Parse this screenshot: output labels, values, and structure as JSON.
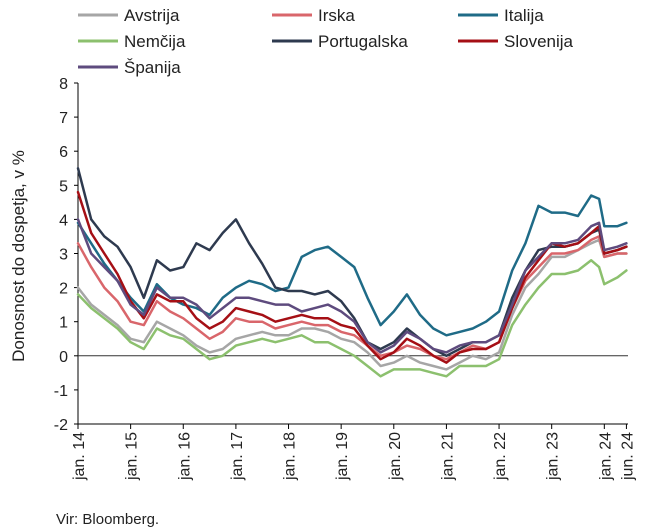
{
  "chart_data": {
    "type": "line",
    "ylabel": "Donosnost do dospetja, v %",
    "source": "Vir: Bloomberg.",
    "ylim": [
      -2,
      8
    ],
    "yticks": [
      -2,
      -1,
      0,
      1,
      2,
      3,
      4,
      5,
      6,
      7,
      8
    ],
    "xlim": [
      2014.0,
      2024.45
    ],
    "xticks": [
      {
        "label": "jan. 14",
        "x": 2014.0
      },
      {
        "label": "jan. 15",
        "x": 2015.0
      },
      {
        "label": "jan. 16",
        "x": 2016.0
      },
      {
        "label": "jan. 17",
        "x": 2017.0
      },
      {
        "label": "jan. 18",
        "x": 2018.0
      },
      {
        "label": "jan. 19",
        "x": 2019.0
      },
      {
        "label": "jan. 20",
        "x": 2020.0
      },
      {
        "label": "jan. 21",
        "x": 2021.0
      },
      {
        "label": "jan. 22",
        "x": 2022.0
      },
      {
        "label": "jan. 23",
        "x": 2023.0
      },
      {
        "label": "jan. 24",
        "x": 2024.0
      },
      {
        "label": "jun. 24",
        "x": 2024.42
      }
    ],
    "grid": false,
    "legend_position": "top",
    "series": [
      {
        "name": "Avstrija",
        "color": "#a6a6a6",
        "x": [
          2014.0,
          2014.25,
          2014.5,
          2014.75,
          2015.0,
          2015.25,
          2015.5,
          2015.75,
          2016.0,
          2016.25,
          2016.5,
          2016.75,
          2017.0,
          2017.25,
          2017.5,
          2017.75,
          2018.0,
          2018.25,
          2018.5,
          2018.75,
          2019.0,
          2019.25,
          2019.5,
          2019.75,
          2020.0,
          2020.25,
          2020.5,
          2020.75,
          2021.0,
          2021.25,
          2021.5,
          2021.75,
          2022.0,
          2022.25,
          2022.5,
          2022.75,
          2023.0,
          2023.25,
          2023.5,
          2023.75,
          2023.9,
          2024.0,
          2024.25,
          2024.42
        ],
        "y": [
          2.0,
          1.5,
          1.2,
          0.9,
          0.5,
          0.4,
          1.0,
          0.8,
          0.6,
          0.3,
          0.1,
          0.2,
          0.5,
          0.6,
          0.7,
          0.6,
          0.6,
          0.8,
          0.8,
          0.7,
          0.5,
          0.4,
          0.1,
          -0.3,
          -0.2,
          0.0,
          -0.2,
          -0.3,
          -0.4,
          -0.2,
          0.0,
          -0.1,
          0.1,
          1.2,
          2.0,
          2.4,
          2.9,
          2.9,
          3.1,
          3.3,
          3.4,
          2.9,
          3.0,
          3.0
        ]
      },
      {
        "name": "Irska",
        "color": "#d9666b",
        "x": [
          2014.0,
          2014.25,
          2014.5,
          2014.75,
          2015.0,
          2015.25,
          2015.5,
          2015.75,
          2016.0,
          2016.25,
          2016.5,
          2016.75,
          2017.0,
          2017.25,
          2017.5,
          2017.75,
          2018.0,
          2018.25,
          2018.5,
          2018.75,
          2019.0,
          2019.25,
          2019.5,
          2019.75,
          2020.0,
          2020.25,
          2020.5,
          2020.75,
          2021.0,
          2021.25,
          2021.5,
          2021.75,
          2022.0,
          2022.25,
          2022.5,
          2022.75,
          2023.0,
          2023.25,
          2023.5,
          2023.75,
          2023.9,
          2024.0,
          2024.25,
          2024.42
        ],
        "y": [
          3.3,
          2.6,
          2.0,
          1.6,
          1.0,
          0.9,
          1.6,
          1.3,
          1.1,
          0.8,
          0.5,
          0.7,
          1.1,
          1.0,
          1.0,
          0.8,
          0.9,
          1.0,
          0.9,
          0.9,
          0.7,
          0.6,
          0.3,
          0.0,
          0.1,
          0.3,
          0.2,
          0.0,
          -0.1,
          0.1,
          0.3,
          0.2,
          0.4,
          1.4,
          2.2,
          2.6,
          3.0,
          3.0,
          3.1,
          3.4,
          3.5,
          2.9,
          3.0,
          3.0
        ]
      },
      {
        "name": "Italija",
        "color": "#1f6b87",
        "x": [
          2014.0,
          2014.25,
          2014.5,
          2014.75,
          2015.0,
          2015.25,
          2015.5,
          2015.75,
          2016.0,
          2016.25,
          2016.5,
          2016.75,
          2017.0,
          2017.25,
          2017.5,
          2017.75,
          2018.0,
          2018.25,
          2018.5,
          2018.75,
          2019.0,
          2019.25,
          2019.5,
          2019.75,
          2020.0,
          2020.25,
          2020.5,
          2020.75,
          2021.0,
          2021.25,
          2021.5,
          2021.75,
          2022.0,
          2022.25,
          2022.5,
          2022.75,
          2023.0,
          2023.25,
          2023.5,
          2023.75,
          2023.9,
          2024.0,
          2024.25,
          2024.42
        ],
        "y": [
          3.9,
          3.3,
          2.7,
          2.2,
          1.7,
          1.3,
          2.1,
          1.7,
          1.5,
          1.4,
          1.2,
          1.7,
          2.0,
          2.2,
          2.1,
          1.9,
          2.0,
          2.9,
          3.1,
          3.2,
          2.9,
          2.6,
          1.7,
          0.9,
          1.3,
          1.8,
          1.2,
          0.8,
          0.6,
          0.7,
          0.8,
          1.0,
          1.3,
          2.5,
          3.3,
          4.4,
          4.2,
          4.2,
          4.1,
          4.7,
          4.6,
          3.8,
          3.8,
          3.9
        ]
      },
      {
        "name": "Nemčija",
        "color": "#8cc06e",
        "x": [
          2014.0,
          2014.25,
          2014.5,
          2014.75,
          2015.0,
          2015.25,
          2015.5,
          2015.75,
          2016.0,
          2016.25,
          2016.5,
          2016.75,
          2017.0,
          2017.25,
          2017.5,
          2017.75,
          2018.0,
          2018.25,
          2018.5,
          2018.75,
          2019.0,
          2019.25,
          2019.5,
          2019.75,
          2020.0,
          2020.25,
          2020.5,
          2020.75,
          2021.0,
          2021.25,
          2021.5,
          2021.75,
          2022.0,
          2022.25,
          2022.5,
          2022.75,
          2023.0,
          2023.25,
          2023.5,
          2023.75,
          2023.9,
          2024.0,
          2024.25,
          2024.42
        ],
        "y": [
          1.8,
          1.4,
          1.1,
          0.8,
          0.4,
          0.2,
          0.8,
          0.6,
          0.5,
          0.2,
          -0.1,
          0.0,
          0.3,
          0.4,
          0.5,
          0.4,
          0.5,
          0.6,
          0.4,
          0.4,
          0.2,
          0.0,
          -0.3,
          -0.6,
          -0.4,
          -0.4,
          -0.4,
          -0.5,
          -0.6,
          -0.3,
          -0.3,
          -0.3,
          -0.1,
          0.9,
          1.5,
          2.0,
          2.4,
          2.4,
          2.5,
          2.8,
          2.6,
          2.1,
          2.3,
          2.5
        ]
      },
      {
        "name": "Portugalska",
        "color": "#2e3a4f",
        "x": [
          2014.0,
          2014.25,
          2014.5,
          2014.75,
          2015.0,
          2015.25,
          2015.5,
          2015.75,
          2016.0,
          2016.25,
          2016.5,
          2016.75,
          2017.0,
          2017.25,
          2017.5,
          2017.75,
          2018.0,
          2018.25,
          2018.5,
          2018.75,
          2019.0,
          2019.25,
          2019.5,
          2019.75,
          2020.0,
          2020.25,
          2020.5,
          2020.75,
          2021.0,
          2021.25,
          2021.5,
          2021.75,
          2022.0,
          2022.25,
          2022.5,
          2022.75,
          2023.0,
          2023.25,
          2023.5,
          2023.75,
          2023.9,
          2024.0,
          2024.25,
          2024.42
        ],
        "y": [
          5.5,
          4.0,
          3.5,
          3.2,
          2.6,
          1.7,
          2.8,
          2.5,
          2.6,
          3.3,
          3.1,
          3.6,
          4.0,
          3.3,
          2.7,
          2.0,
          1.9,
          1.9,
          1.8,
          1.9,
          1.6,
          1.1,
          0.4,
          0.2,
          0.4,
          0.8,
          0.5,
          0.2,
          0.0,
          0.2,
          0.4,
          0.4,
          0.6,
          1.7,
          2.5,
          3.1,
          3.2,
          3.2,
          3.3,
          3.6,
          3.7,
          3.0,
          3.1,
          3.2
        ]
      },
      {
        "name": "Slovenija",
        "color": "#a50f15",
        "x": [
          2014.0,
          2014.25,
          2014.5,
          2014.75,
          2015.0,
          2015.25,
          2015.5,
          2015.75,
          2016.0,
          2016.25,
          2016.5,
          2016.75,
          2017.0,
          2017.25,
          2017.5,
          2017.75,
          2018.0,
          2018.25,
          2018.5,
          2018.75,
          2019.0,
          2019.25,
          2019.5,
          2019.75,
          2020.0,
          2020.25,
          2020.5,
          2020.75,
          2021.0,
          2021.25,
          2021.5,
          2021.75,
          2022.0,
          2022.25,
          2022.5,
          2022.75,
          2023.0,
          2023.25,
          2023.5,
          2023.75,
          2023.9,
          2024.0,
          2024.25,
          2024.42
        ],
        "y": [
          4.8,
          3.6,
          3.0,
          2.4,
          1.6,
          1.1,
          1.8,
          1.6,
          1.6,
          1.1,
          0.8,
          1.0,
          1.4,
          1.3,
          1.2,
          1.0,
          1.1,
          1.2,
          1.1,
          1.1,
          0.9,
          0.8,
          0.3,
          -0.1,
          0.1,
          0.5,
          0.3,
          0.0,
          -0.2,
          0.1,
          0.2,
          0.2,
          0.4,
          1.4,
          2.3,
          2.8,
          3.3,
          3.2,
          3.3,
          3.6,
          3.8,
          3.0,
          3.1,
          3.2
        ]
      },
      {
        "name": "Španija",
        "color": "#5e4b7e",
        "x": [
          2014.0,
          2014.25,
          2014.5,
          2014.75,
          2015.0,
          2015.25,
          2015.5,
          2015.75,
          2016.0,
          2016.25,
          2016.5,
          2016.75,
          2017.0,
          2017.25,
          2017.5,
          2017.75,
          2018.0,
          2018.25,
          2018.5,
          2018.75,
          2019.0,
          2019.25,
          2019.5,
          2019.75,
          2020.0,
          2020.25,
          2020.5,
          2020.75,
          2021.0,
          2021.25,
          2021.5,
          2021.75,
          2022.0,
          2022.25,
          2022.5,
          2022.75,
          2023.0,
          2023.25,
          2023.5,
          2023.75,
          2023.9,
          2024.0,
          2024.25,
          2024.42
        ],
        "y": [
          4.0,
          3.0,
          2.6,
          2.2,
          1.5,
          1.2,
          2.0,
          1.7,
          1.7,
          1.5,
          1.1,
          1.4,
          1.7,
          1.7,
          1.6,
          1.5,
          1.5,
          1.3,
          1.4,
          1.5,
          1.3,
          1.0,
          0.4,
          0.1,
          0.3,
          0.7,
          0.5,
          0.2,
          0.1,
          0.3,
          0.4,
          0.4,
          0.6,
          1.5,
          2.5,
          2.9,
          3.3,
          3.3,
          3.4,
          3.8,
          3.9,
          3.1,
          3.2,
          3.3
        ]
      }
    ]
  }
}
